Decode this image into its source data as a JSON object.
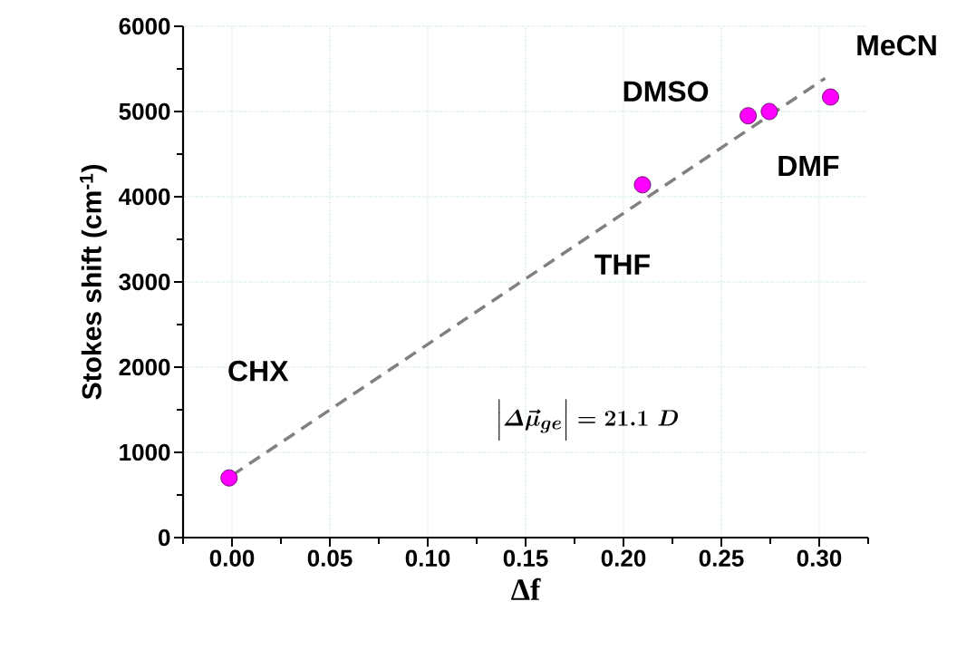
{
  "chart_data": {
    "type": "scatter",
    "xlabel": "Δf",
    "ylabel": "Stokes shift (cm$^{-1}$)",
    "xlim": [
      -0.025,
      0.325
    ],
    "ylim": [
      0,
      6000
    ],
    "xticks": [
      {
        "value": -0.025,
        "label": null
      },
      {
        "value": 0,
        "label": "0.00"
      },
      {
        "value": 0.025,
        "label": null
      },
      {
        "value": 0.05,
        "label": "0.05"
      },
      {
        "value": 0.075,
        "label": null
      },
      {
        "value": 0.1,
        "label": "0.10"
      },
      {
        "value": 0.125,
        "label": null
      },
      {
        "value": 0.15,
        "label": "0.15"
      },
      {
        "value": 0.175,
        "label": null
      },
      {
        "value": 0.2,
        "label": "0.20"
      },
      {
        "value": 0.225,
        "label": null
      },
      {
        "value": 0.25,
        "label": "0.25"
      },
      {
        "value": 0.275,
        "label": null
      },
      {
        "value": 0.3,
        "label": "0.30"
      },
      {
        "value": 0.325,
        "label": null
      }
    ],
    "yticks": [
      0,
      {
        "value": 500,
        "label": null
      },
      1000,
      {
        "value": 1500,
        "label": null
      },
      2000,
      {
        "value": 2500,
        "label": null
      },
      3000,
      {
        "value": 3500,
        "label": null
      },
      4000,
      {
        "value": 4500,
        "label": null
      },
      5000,
      {
        "value": 5500,
        "label": null
      },
      6000
    ],
    "grid": true,
    "series": [
      {
        "color": "#ff00ff",
        "marker": "circle",
        "x": [
          -0.0015,
          0.2097,
          0.2637,
          0.2745,
          0.3058
        ],
        "values": [
          700,
          4140,
          4950,
          5000,
          5170
        ]
      },
      {
        "type": "line",
        "color": "#808080",
        "line_style": "dashed",
        "marker": "none",
        "x": [
          0,
          0.303
        ],
        "values": [
          730,
          5390
        ]
      }
    ],
    "annotations": [
      "CHX",
      "THF",
      "DMSO",
      "DMF",
      "MeCN",
      "\\Bigl|\\varDelta\\vec{\\mu}_{ge}\\Bigr| = 21.1\\ D"
    ]
  }
}
